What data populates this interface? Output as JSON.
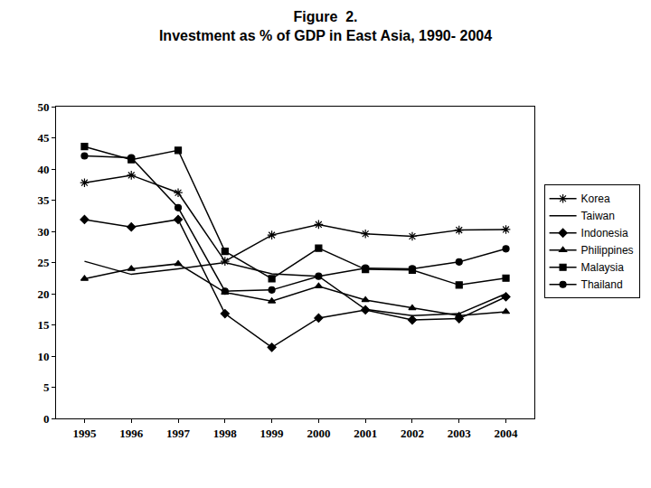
{
  "chart_data": {
    "type": "line",
    "title": [
      "Figure  2.",
      "Investment as % of GDP in East Asia, 1990- 2004"
    ],
    "categories": [
      "1995",
      "1996",
      "1997",
      "1998",
      "1999",
      "2000",
      "2001",
      "2002",
      "2003",
      "2004"
    ],
    "series": [
      {
        "name": "Korea",
        "color": "#000000",
        "marker": "asterisk",
        "line_style": "solid",
        "values": [
          37.8,
          39.0,
          36.2,
          25.2,
          29.4,
          31.1,
          29.6,
          29.2,
          30.2,
          30.3
        ]
      },
      {
        "name": "Taiwan",
        "color": "#000000",
        "marker": "none",
        "line_style": "solid",
        "values": [
          25.2,
          23.1,
          24.0,
          25.0,
          23.2,
          22.8,
          17.5,
          16.5,
          16.8,
          20.0
        ]
      },
      {
        "name": "Indonesia",
        "color": "#000000",
        "marker": "diamond",
        "line_style": "solid",
        "values": [
          31.9,
          30.7,
          31.9,
          16.8,
          11.4,
          16.1,
          17.4,
          15.8,
          16.0,
          19.5
        ]
      },
      {
        "name": "Philippines",
        "color": "#000000",
        "marker": "triangle",
        "line_style": "solid",
        "values": [
          22.4,
          24.0,
          24.8,
          20.2,
          18.8,
          21.2,
          19.0,
          17.7,
          16.5,
          17.1
        ]
      },
      {
        "name": "Malaysia",
        "color": "#000000",
        "marker": "square",
        "line_style": "solid",
        "values": [
          43.6,
          41.5,
          43.0,
          26.8,
          22.4,
          27.3,
          23.9,
          23.8,
          21.4,
          22.5
        ]
      },
      {
        "name": "Thailand",
        "color": "#000000",
        "marker": "circle",
        "line_style": "solid",
        "values": [
          42.1,
          41.8,
          33.8,
          20.4,
          20.6,
          22.8,
          24.1,
          24.0,
          25.1,
          27.2
        ]
      }
    ],
    "ylim": [
      0,
      50
    ],
    "yticks": [
      0,
      5,
      10,
      15,
      20,
      25,
      30,
      35,
      40,
      45,
      50
    ],
    "grid": false,
    "legend": "right"
  }
}
